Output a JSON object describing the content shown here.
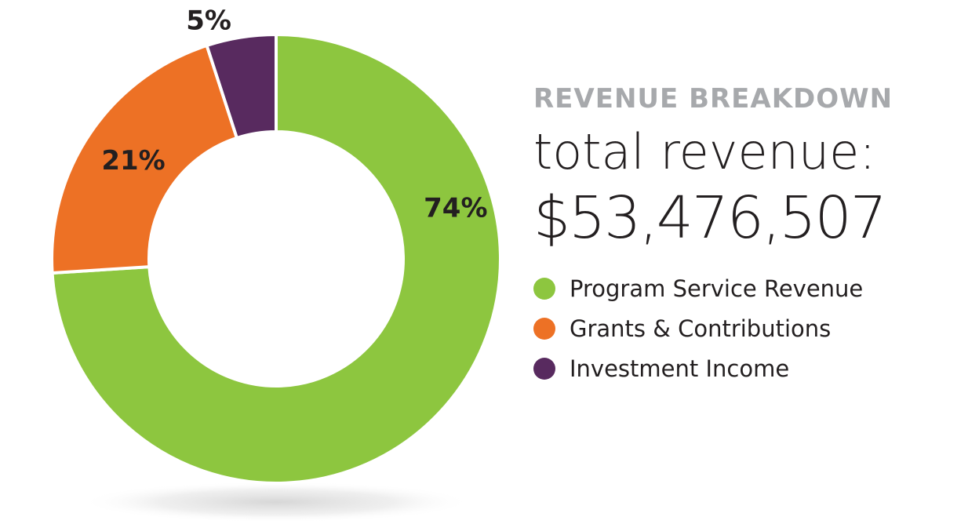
{
  "chart_data": {
    "type": "pie",
    "title": "REVENUE BREAKDOWN",
    "total_label": "total revenue:",
    "total_value": "$53,476,507",
    "slices": [
      {
        "name": "Program Service Revenue",
        "value": 74,
        "label": "74%",
        "color": "#8dc63f"
      },
      {
        "name": "Grants & Contributions",
        "value": 21,
        "label": "21%",
        "color": "#ed7125"
      },
      {
        "name": "Investment Income",
        "value": 5,
        "label": "5%",
        "color": "#582a5f"
      }
    ],
    "legend_position": "right"
  }
}
